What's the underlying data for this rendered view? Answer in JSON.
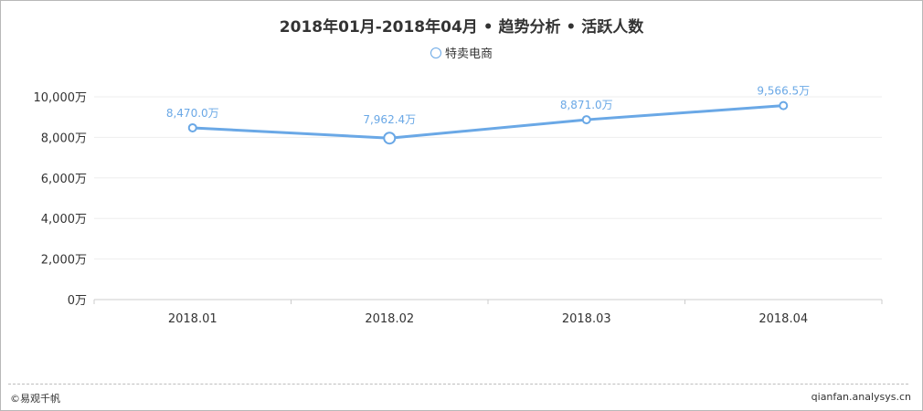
{
  "chart_data": {
    "type": "line",
    "title": "2018年01月-2018年04月 • 趋势分析 • 活跃人数",
    "categories": [
      "2018.01",
      "2018.02",
      "2018.03",
      "2018.04"
    ],
    "series": [
      {
        "name": "特卖电商",
        "values": [
          8470.0,
          7962.4,
          8871.0,
          9566.5
        ],
        "labels": [
          "8,470.0万",
          "7,962.4万",
          "8,871.0万",
          "9,566.5万"
        ],
        "color": "#6aa8e6"
      }
    ],
    "y_ticks": [
      "0万",
      "2,000万",
      "4,000万",
      "6,000万",
      "8,000万",
      "10,000万"
    ],
    "ylim": [
      0,
      10000
    ],
    "grid": true,
    "legend_position": "top-center",
    "highlighted_point": 1
  },
  "footer": {
    "brand": "©易观千帆",
    "site": "qianfan.analysys.cn"
  }
}
